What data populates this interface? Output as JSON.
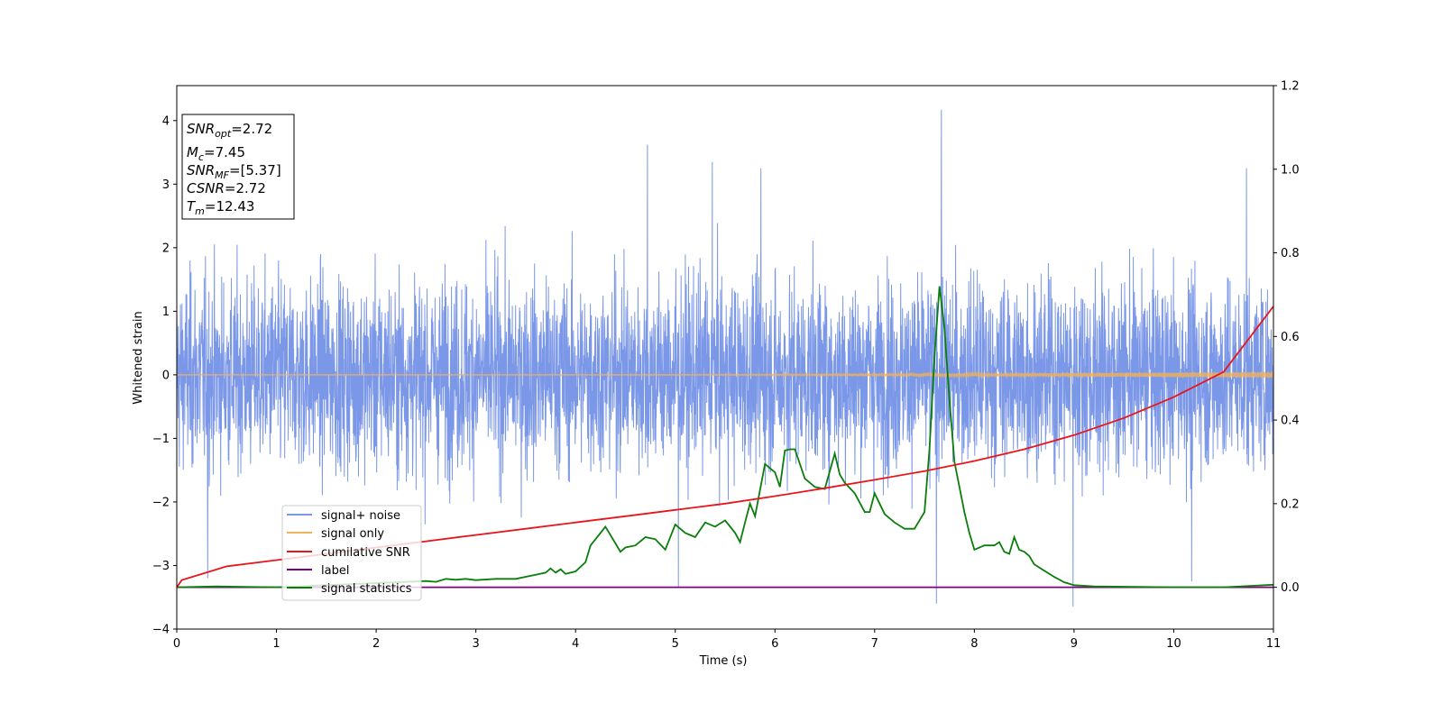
{
  "chart_data": {
    "type": "line",
    "xlabel": "Time (s)",
    "ylabel": "Whitened strain",
    "xlim": [
      0,
      11
    ],
    "ylim": [
      -4,
      4.55
    ],
    "y2lim": [
      -0.1,
      1.2
    ],
    "x_ticks": [
      "0",
      "1",
      "2",
      "3",
      "4",
      "5",
      "6",
      "7",
      "8",
      "9",
      "10",
      "11"
    ],
    "x_tick_values": [
      0,
      1,
      2,
      3,
      4,
      5,
      6,
      7,
      8,
      9,
      10,
      11
    ],
    "y_ticks": [
      "−4",
      "−3",
      "−2",
      "−1",
      "0",
      "1",
      "2",
      "3",
      "4"
    ],
    "y_tick_values": [
      -4,
      -3,
      -2,
      -1,
      0,
      1,
      2,
      3,
      4
    ],
    "y2_ticks": [
      "0.0",
      "0.2",
      "0.4",
      "0.6",
      "0.8",
      "1.0",
      "1.2"
    ],
    "y2_tick_values": [
      0,
      0.2,
      0.4,
      0.6,
      0.8,
      1.0,
      1.2
    ],
    "legend_position": "lower-left",
    "annotation_box": {
      "position": "upper-left",
      "lines": [
        {
          "symbol": "SNR",
          "sub": "opt",
          "value": "=2.72"
        },
        {
          "symbol": "M",
          "sub": "c",
          "value": "=7.45"
        },
        {
          "symbol": "SNR",
          "sub": "MF",
          "value": "=[5.37]"
        },
        {
          "symbol": "CSNR",
          "sub": "",
          "value": "=2.72"
        },
        {
          "symbol": "T",
          "sub": "m",
          "value": "=12.43"
        }
      ]
    },
    "series": [
      {
        "name": "signal+ noise",
        "color": "#7b97e8",
        "axis": "left",
        "note": "dense whitened noise, roughly within ±2, spikes up to ~4.2 near t=7.67",
        "spikes": [
          [
            7.67,
            4.17
          ],
          [
            4.72,
            3.62
          ],
          [
            5.37,
            3.35
          ],
          [
            5.86,
            3.25
          ],
          [
            10.73,
            3.25
          ],
          [
            7.62,
            -3.6
          ],
          [
            8.99,
            -3.65
          ],
          [
            5.03,
            -3.35
          ],
          [
            0.31,
            -3.2
          ],
          [
            10.18,
            -3.25
          ]
        ]
      },
      {
        "name": "signal only",
        "color": "#f0b25a",
        "axis": "left",
        "note": "near-zero chirp, amplitude growing to ~0.05 at t=11",
        "amplitude_end": 0.05
      },
      {
        "name": "cumilative SNR",
        "color": "#e8151b",
        "axis": "right",
        "x": [
          0,
          0.05,
          0.5,
          1,
          1.5,
          2,
          2.5,
          3,
          3.5,
          4,
          4.5,
          5,
          5.5,
          6,
          6.5,
          7,
          7.5,
          8,
          8.5,
          9,
          9.5,
          10,
          10.5,
          11
        ],
        "y": [
          0.0,
          0.017,
          0.05,
          0.065,
          0.08,
          0.095,
          0.11,
          0.125,
          0.14,
          0.155,
          0.17,
          0.185,
          0.2,
          0.218,
          0.237,
          0.257,
          0.278,
          0.302,
          0.33,
          0.364,
          0.405,
          0.455,
          0.515,
          0.672
        ]
      },
      {
        "name": "label",
        "color": "#800080",
        "axis": "right",
        "x": [
          0,
          11
        ],
        "y": [
          0,
          0
        ]
      },
      {
        "name": "signal statistics",
        "color": "#0a7d0a",
        "axis": "right",
        "x": [
          0,
          0.4,
          1,
          2.5,
          2.6,
          2.7,
          2.8,
          2.9,
          3,
          3.2,
          3.4,
          3.5,
          3.6,
          3.7,
          3.75,
          3.8,
          3.85,
          3.9,
          4,
          4.1,
          4.15,
          4.2,
          4.3,
          4.4,
          4.45,
          4.5,
          4.6,
          4.7,
          4.8,
          4.9,
          5,
          5.1,
          5.2,
          5.3,
          5.4,
          5.5,
          5.6,
          5.65,
          5.7,
          5.75,
          5.8,
          5.9,
          6,
          6.05,
          6.1,
          6.15,
          6.2,
          6.3,
          6.4,
          6.5,
          6.6,
          6.65,
          6.7,
          6.8,
          6.9,
          6.95,
          7,
          7.05,
          7.1,
          7.2,
          7.3,
          7.4,
          7.5,
          7.55,
          7.6,
          7.65,
          7.7,
          7.75,
          7.8,
          7.85,
          7.9,
          7.95,
          8,
          8.1,
          8.2,
          8.25,
          8.3,
          8.35,
          8.4,
          8.45,
          8.5,
          8.55,
          8.6,
          8.7,
          8.8,
          8.9,
          9,
          9.2,
          10,
          10.5,
          11
        ],
        "y": [
          0,
          0.002,
          0.0,
          0.015,
          0.013,
          0.02,
          0.018,
          0.02,
          0.017,
          0.02,
          0.02,
          0.025,
          0.03,
          0.035,
          0.045,
          0.035,
          0.043,
          0.032,
          0.038,
          0.06,
          0.1,
          0.115,
          0.145,
          0.105,
          0.085,
          0.095,
          0.1,
          0.12,
          0.115,
          0.09,
          0.15,
          0.13,
          0.12,
          0.155,
          0.145,
          0.16,
          0.13,
          0.108,
          0.155,
          0.2,
          0.17,
          0.295,
          0.275,
          0.24,
          0.327,
          0.33,
          0.33,
          0.26,
          0.24,
          0.235,
          0.32,
          0.27,
          0.25,
          0.225,
          0.18,
          0.18,
          0.225,
          0.2,
          0.175,
          0.155,
          0.14,
          0.14,
          0.18,
          0.33,
          0.55,
          0.72,
          0.62,
          0.45,
          0.3,
          0.24,
          0.18,
          0.13,
          0.09,
          0.1,
          0.1,
          0.108,
          0.085,
          0.08,
          0.12,
          0.09,
          0.085,
          0.075,
          0.055,
          0.04,
          0.025,
          0.012,
          0.005,
          0.002,
          0.0,
          0.0,
          0.006
        ]
      }
    ]
  }
}
